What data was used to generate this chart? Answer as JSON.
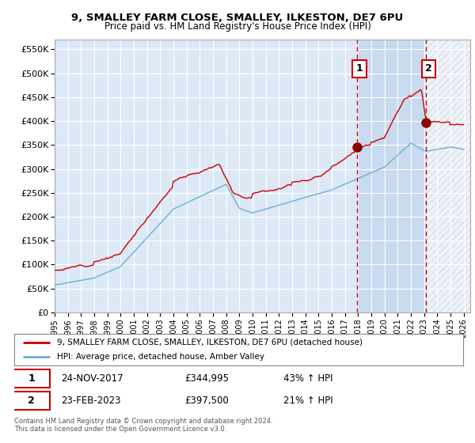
{
  "title": "9, SMALLEY FARM CLOSE, SMALLEY, ILKESTON, DE7 6PU",
  "subtitle": "Price paid vs. HM Land Registry's House Price Index (HPI)",
  "ylabel_ticks": [
    "£0",
    "£50K",
    "£100K",
    "£150K",
    "£200K",
    "£250K",
    "£300K",
    "£350K",
    "£400K",
    "£450K",
    "£500K",
    "£550K"
  ],
  "ytick_values": [
    0,
    50000,
    100000,
    150000,
    200000,
    250000,
    300000,
    350000,
    400000,
    450000,
    500000,
    550000
  ],
  "ylim": [
    0,
    570000
  ],
  "xlim_start": 1995.0,
  "xlim_end": 2026.5,
  "xtick_labels": [
    "1995",
    "1996",
    "1997",
    "1998",
    "1999",
    "2000",
    "2001",
    "2002",
    "2003",
    "2004",
    "2005",
    "2006",
    "2007",
    "2008",
    "2009",
    "2010",
    "2011",
    "2012",
    "2013",
    "2014",
    "2015",
    "2016",
    "2017",
    "2018",
    "2019",
    "2020",
    "2021",
    "2022",
    "2023",
    "2024",
    "2025",
    "2026"
  ],
  "xtick_values": [
    1995,
    1996,
    1997,
    1998,
    1999,
    2000,
    2001,
    2002,
    2003,
    2004,
    2005,
    2006,
    2007,
    2008,
    2009,
    2010,
    2011,
    2012,
    2013,
    2014,
    2015,
    2016,
    2017,
    2018,
    2019,
    2020,
    2021,
    2022,
    2023,
    2024,
    2025,
    2026
  ],
  "hpi_color": "#6baed6",
  "price_color": "#cc0000",
  "marker1_date": 2017.9,
  "marker1_value": 344995,
  "marker1_label": "1",
  "marker1_date_str": "24-NOV-2017",
  "marker1_price_str": "£344,995",
  "marker1_hpi_str": "43% ↑ HPI",
  "marker2_date": 2023.15,
  "marker2_value": 397500,
  "marker2_label": "2",
  "marker2_date_str": "23-FEB-2023",
  "marker2_price_str": "£397,500",
  "marker2_hpi_str": "21% ↑ HPI",
  "legend_line1": "9, SMALLEY FARM CLOSE, SMALLEY, ILKESTON, DE7 6PU (detached house)",
  "legend_line2": "HPI: Average price, detached house, Amber Valley",
  "footnote": "Contains HM Land Registry data © Crown copyright and database right 2024.\nThis data is licensed under the Open Government Licence v3.0.",
  "bg_color": "#ffffff",
  "plot_bg_color": "#dce8f5",
  "grid_color": "#ffffff",
  "dashed_line_color": "#cc0000",
  "shade_between_color": "#c5d9ef",
  "shade_after_color": "#e8eef5"
}
